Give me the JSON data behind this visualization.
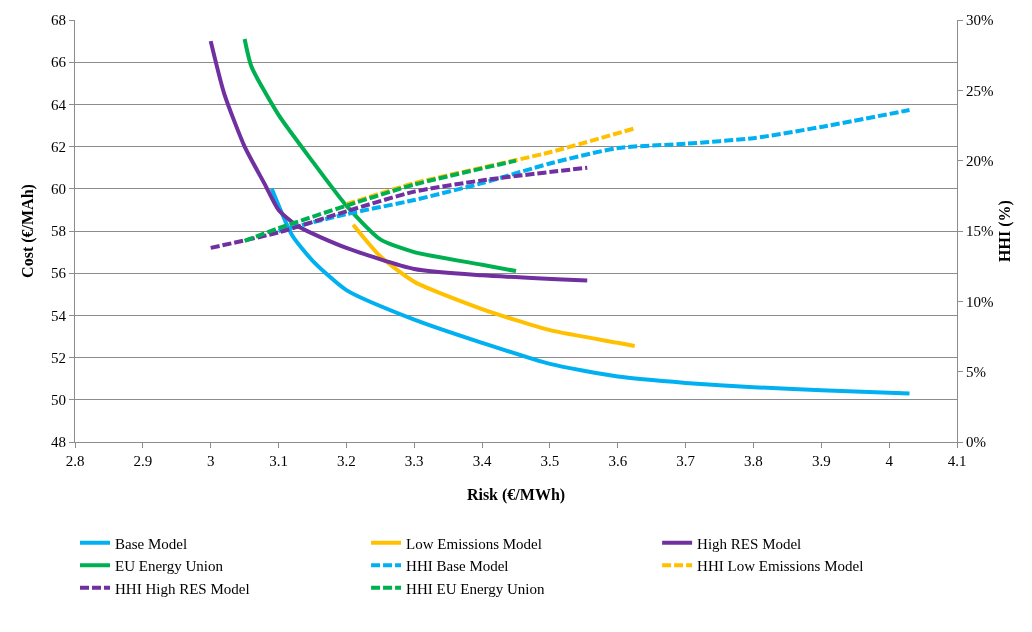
{
  "chart_data": {
    "type": "line",
    "xlabel": "Risk (€/MWh)",
    "ylabel": "Cost (€/MAh)",
    "y2label": "HHI (%)",
    "xlim": [
      2.8,
      4.1
    ],
    "xticks": [
      2.8,
      2.9,
      3,
      3.1,
      3.2,
      3.3,
      3.4,
      3.5,
      3.6,
      3.7,
      3.8,
      3.9,
      4,
      4.1
    ],
    "ylim": [
      48,
      68
    ],
    "yticks": [
      48,
      50,
      52,
      54,
      56,
      58,
      60,
      62,
      64,
      66,
      68
    ],
    "y2lim": [
      0,
      30
    ],
    "y2ticks": [
      {
        "value": 0,
        "label": "0%"
      },
      {
        "value": 5,
        "label": "5%"
      },
      {
        "value": 10,
        "label": "10%"
      },
      {
        "value": 15,
        "label": "15%"
      },
      {
        "value": 20,
        "label": "20%"
      },
      {
        "value": 25,
        "label": "25%"
      },
      {
        "value": 30,
        "label": "30%"
      }
    ],
    "grid": "y",
    "legend": "bottom",
    "marker": "none",
    "series": [
      {
        "name": "Base Model",
        "color": "#00b0f0",
        "line_style": "solid",
        "x": [
          3.09,
          3.12,
          3.15,
          3.2,
          3.3,
          3.4,
          3.5,
          3.6,
          3.7,
          3.8,
          3.9,
          4.03
        ],
        "values": [
          60.0,
          57.8,
          56.6,
          55.2,
          53.8,
          52.7,
          51.7,
          51.1,
          50.8,
          50.6,
          50.45,
          50.3
        ]
      },
      {
        "name": "Low Emissions Model",
        "color": "#ffc000",
        "line_style": "solid",
        "x": [
          3.21,
          3.25,
          3.3,
          3.4,
          3.5,
          3.6,
          3.625
        ],
        "values": [
          58.3,
          56.8,
          55.6,
          54.3,
          53.3,
          52.7,
          52.55
        ]
      },
      {
        "name": "High RES Model",
        "color": "#7030a0",
        "line_style": "solid",
        "x": [
          3.0,
          3.02,
          3.05,
          3.08,
          3.1,
          3.13,
          3.2,
          3.3,
          3.4,
          3.555
        ],
        "values": [
          67.0,
          64.5,
          62.0,
          60.2,
          59.0,
          58.2,
          57.2,
          56.2,
          55.9,
          55.65
        ]
      },
      {
        "name": "EU Energy Union",
        "color": "#00b050",
        "line_style": "solid",
        "x": [
          3.05,
          3.06,
          3.1,
          3.15,
          3.2,
          3.25,
          3.3,
          3.4,
          3.45
        ],
        "values": [
          67.1,
          65.8,
          63.5,
          61.3,
          59.2,
          57.6,
          57.0,
          56.4,
          56.1
        ]
      },
      {
        "name": "HHI Base Model",
        "color": "#00b0f0",
        "line_style": "dashed",
        "axis": "y2",
        "x": [
          3.1,
          3.2,
          3.3,
          3.4,
          3.5,
          3.6,
          3.7,
          3.8,
          3.9,
          4.03
        ],
        "values": [
          15.0,
          16.2,
          17.2,
          18.4,
          19.8,
          20.9,
          21.2,
          21.6,
          22.4,
          23.6
        ]
      },
      {
        "name": "HHI Low Emissions Model",
        "color": "#ffc000",
        "line_style": "dashed",
        "axis": "y2",
        "x": [
          3.2,
          3.3,
          3.4,
          3.5,
          3.625
        ],
        "values": [
          16.9,
          18.4,
          19.5,
          20.6,
          22.3
        ]
      },
      {
        "name": "HHI High RES Model",
        "color": "#7030a0",
        "line_style": "dashed",
        "axis": "y2",
        "x": [
          3.0,
          3.1,
          3.2,
          3.3,
          3.4,
          3.555
        ],
        "values": [
          13.8,
          14.9,
          16.4,
          17.8,
          18.6,
          19.5
        ]
      },
      {
        "name": "HHI EU Energy Union",
        "color": "#00b050",
        "line_style": "dashed",
        "axis": "y2",
        "x": [
          3.05,
          3.1,
          3.2,
          3.3,
          3.45
        ],
        "values": [
          14.3,
          15.2,
          16.8,
          18.3,
          20.0
        ]
      }
    ]
  }
}
